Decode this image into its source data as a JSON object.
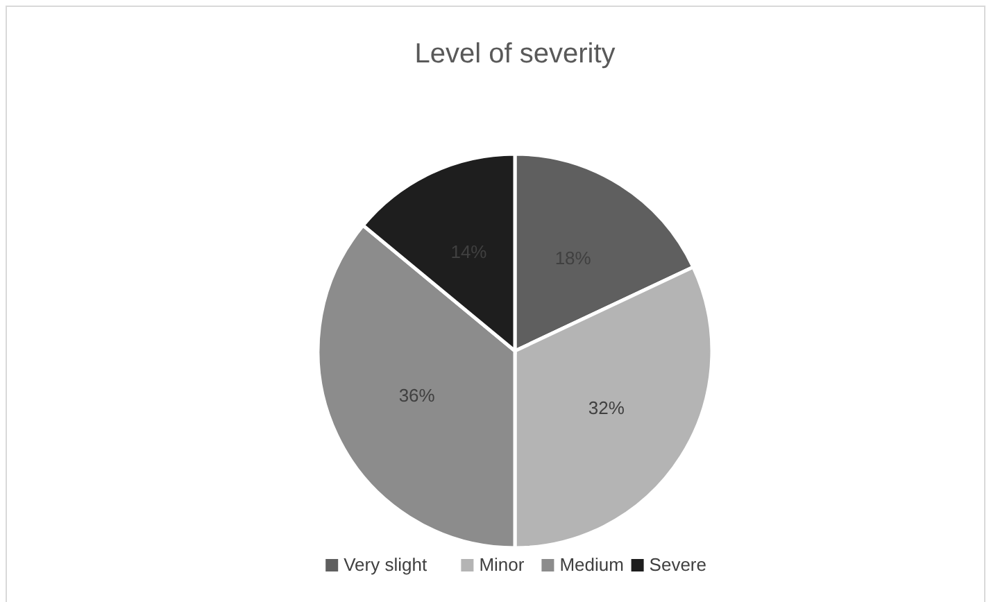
{
  "chart_data": {
    "type": "pie",
    "title": "Level of severity",
    "categories": [
      "Very slight",
      "Minor",
      "Medium",
      "Severe"
    ],
    "values": [
      18,
      32,
      36,
      14
    ],
    "colors": [
      "#5f5f5f",
      "#b4b4b4",
      "#8c8c8c",
      "#1e1e1e"
    ],
    "value_labels": [
      "18%",
      "32%",
      "36%",
      "14%"
    ],
    "legend": "bottom"
  }
}
